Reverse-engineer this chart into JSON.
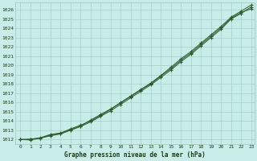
{
  "title": "Graphe pression niveau de la mer (hPa)",
  "background_color": "#c8ede8",
  "grid_color": "#9ec8c4",
  "line_color": "#2d5a2d",
  "text_color": "#1a3a1a",
  "xlim_min": -0.5,
  "xlim_max": 23.3,
  "ylim_min": 1011.5,
  "ylim_max": 1026.8,
  "yticks": [
    1012,
    1013,
    1014,
    1015,
    1016,
    1017,
    1018,
    1019,
    1020,
    1021,
    1022,
    1023,
    1024,
    1025,
    1026
  ],
  "xticks": [
    0,
    1,
    2,
    3,
    4,
    5,
    6,
    7,
    8,
    9,
    10,
    11,
    12,
    13,
    14,
    15,
    16,
    17,
    18,
    19,
    20,
    21,
    22,
    23
  ],
  "line1_x": [
    0,
    1,
    2,
    3,
    4,
    5,
    6,
    7,
    8,
    9,
    10,
    11,
    12,
    13,
    14,
    15,
    16,
    17,
    18,
    19,
    20,
    21,
    22,
    23
  ],
  "line1_y": [
    1012.0,
    1012.05,
    1012.15,
    1012.4,
    1012.6,
    1013.0,
    1013.4,
    1013.9,
    1014.5,
    1015.1,
    1015.8,
    1016.5,
    1017.2,
    1017.9,
    1018.7,
    1019.5,
    1020.4,
    1021.2,
    1022.1,
    1023.0,
    1023.9,
    1025.0,
    1025.6,
    1026.3
  ],
  "line2_x": [
    0,
    1,
    2,
    3,
    4,
    5,
    6,
    7,
    8,
    9,
    10,
    11,
    12,
    13,
    14,
    15,
    16,
    17,
    18,
    19,
    20,
    21,
    22,
    23
  ],
  "line2_y": [
    1012.0,
    1011.95,
    1012.15,
    1012.5,
    1012.65,
    1013.05,
    1013.45,
    1014.1,
    1014.7,
    1015.3,
    1016.0,
    1016.7,
    1017.4,
    1018.1,
    1018.9,
    1019.8,
    1020.7,
    1021.5,
    1022.4,
    1023.3,
    1024.2,
    1025.2,
    1025.85,
    1026.5
  ],
  "line3_x": [
    0,
    1,
    2,
    3,
    4,
    5,
    6,
    7,
    8,
    9,
    10,
    11,
    12,
    13,
    14,
    15,
    16,
    17,
    18,
    19,
    20,
    21,
    22,
    23
  ],
  "line3_y": [
    1012.0,
    1012.0,
    1012.2,
    1012.55,
    1012.7,
    1013.15,
    1013.55,
    1014.0,
    1014.6,
    1015.25,
    1015.95,
    1016.65,
    1017.35,
    1018.0,
    1018.85,
    1019.65,
    1020.55,
    1021.35,
    1022.25,
    1023.15,
    1024.05,
    1025.1,
    1025.7,
    1026.1
  ]
}
